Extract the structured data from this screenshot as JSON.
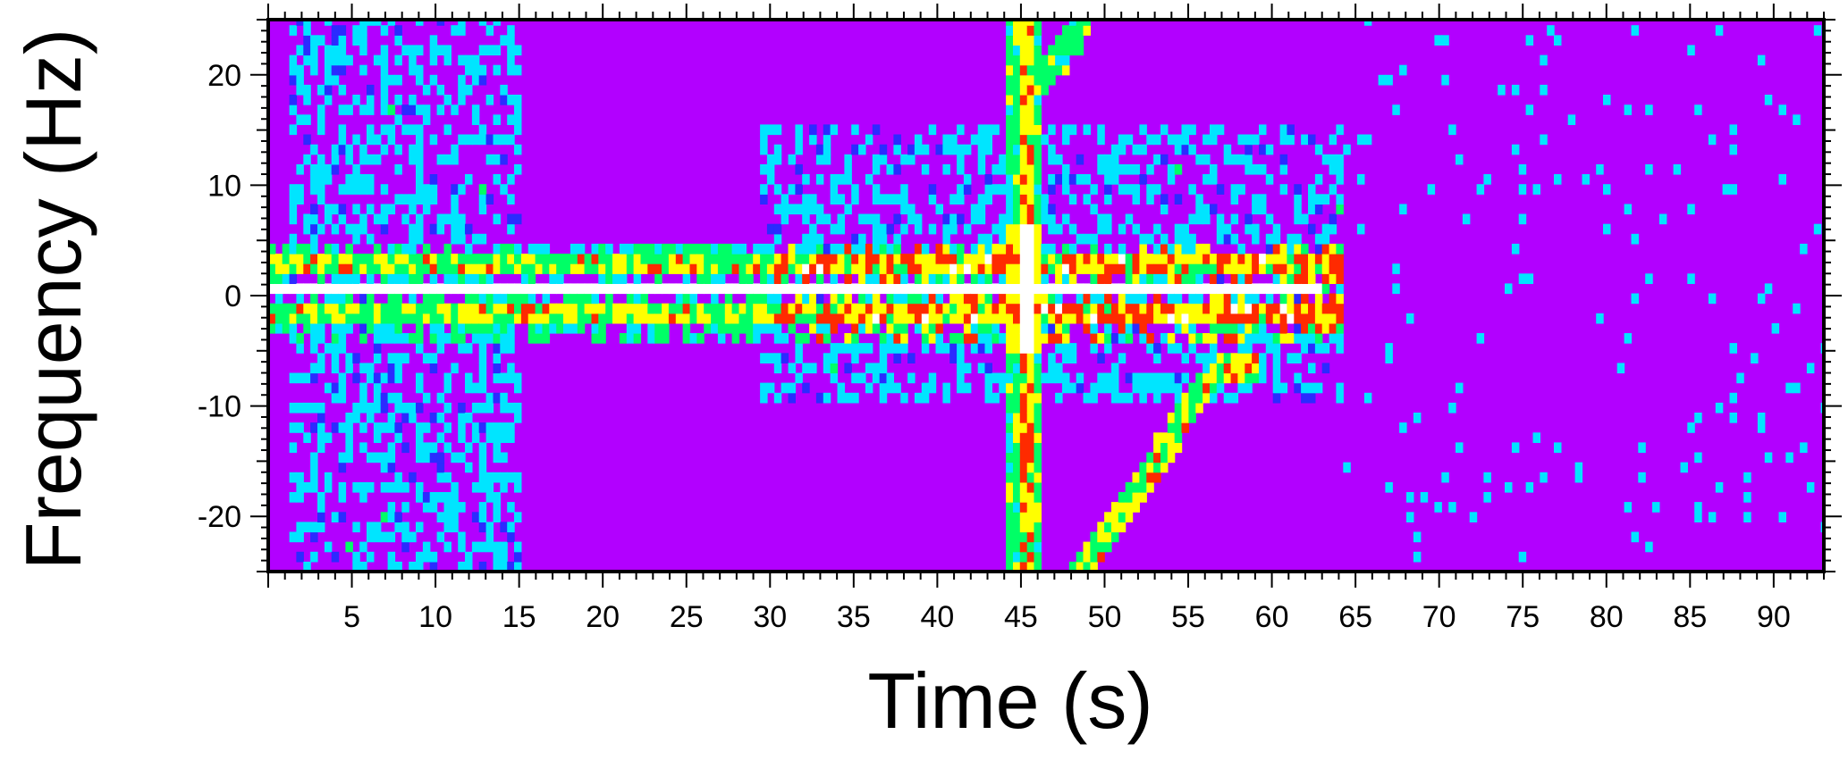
{
  "chart_data": {
    "type": "heatmap",
    "xlabel": "Time (s)",
    "ylabel": "Frequency (Hz)",
    "xlim": [
      0,
      93
    ],
    "ylim": [
      -25,
      25
    ],
    "x_ticks": [
      5,
      10,
      15,
      20,
      25,
      30,
      35,
      40,
      45,
      50,
      55,
      60,
      65,
      70,
      75,
      80,
      85,
      90
    ],
    "y_ticks": [
      -20,
      -10,
      0,
      10,
      20
    ],
    "background_color": "#b200ff",
    "colormap": [
      "#b200ff",
      "#2b2bff",
      "#00e5ff",
      "#00ff66",
      "#ffff00",
      "#ff2a00",
      "#ffffff"
    ],
    "features": [
      {
        "kind": "horizontal_band",
        "freq_hz": 0,
        "time_range": [
          0,
          63
        ],
        "intensity": "max"
      },
      {
        "kind": "sidebands",
        "freq_hz": [
          -2,
          2
        ],
        "time_range": [
          0,
          64
        ],
        "intensity": "high"
      },
      {
        "kind": "vertical_transient",
        "time_s": 45,
        "freq_range": [
          -25,
          25
        ],
        "intensity": "max"
      },
      {
        "kind": "chirp",
        "points": [
          [
            48.5,
            -25
          ],
          [
            51,
            -20
          ],
          [
            53.5,
            -14
          ],
          [
            55.5,
            -9
          ],
          [
            57,
            -7
          ],
          [
            58.5,
            -7
          ]
        ],
        "intensity": "high"
      },
      {
        "kind": "chirp",
        "points": [
          [
            46,
            19
          ],
          [
            47,
            21
          ],
          [
            48,
            23
          ],
          [
            48.5,
            25
          ]
        ],
        "intensity": "medium"
      },
      {
        "kind": "broadband_noise",
        "time_range": [
          29,
          64
        ],
        "freq_range": [
          -10,
          15
        ],
        "intensity": "low"
      },
      {
        "kind": "broadband_noise",
        "time_range": [
          1,
          15
        ],
        "freq_range": [
          -25,
          25
        ],
        "intensity": "low"
      },
      {
        "kind": "sparse_noise",
        "time_range": [
          64,
          93
        ],
        "freq_range": [
          -25,
          25
        ],
        "intensity": "very_low"
      }
    ]
  }
}
